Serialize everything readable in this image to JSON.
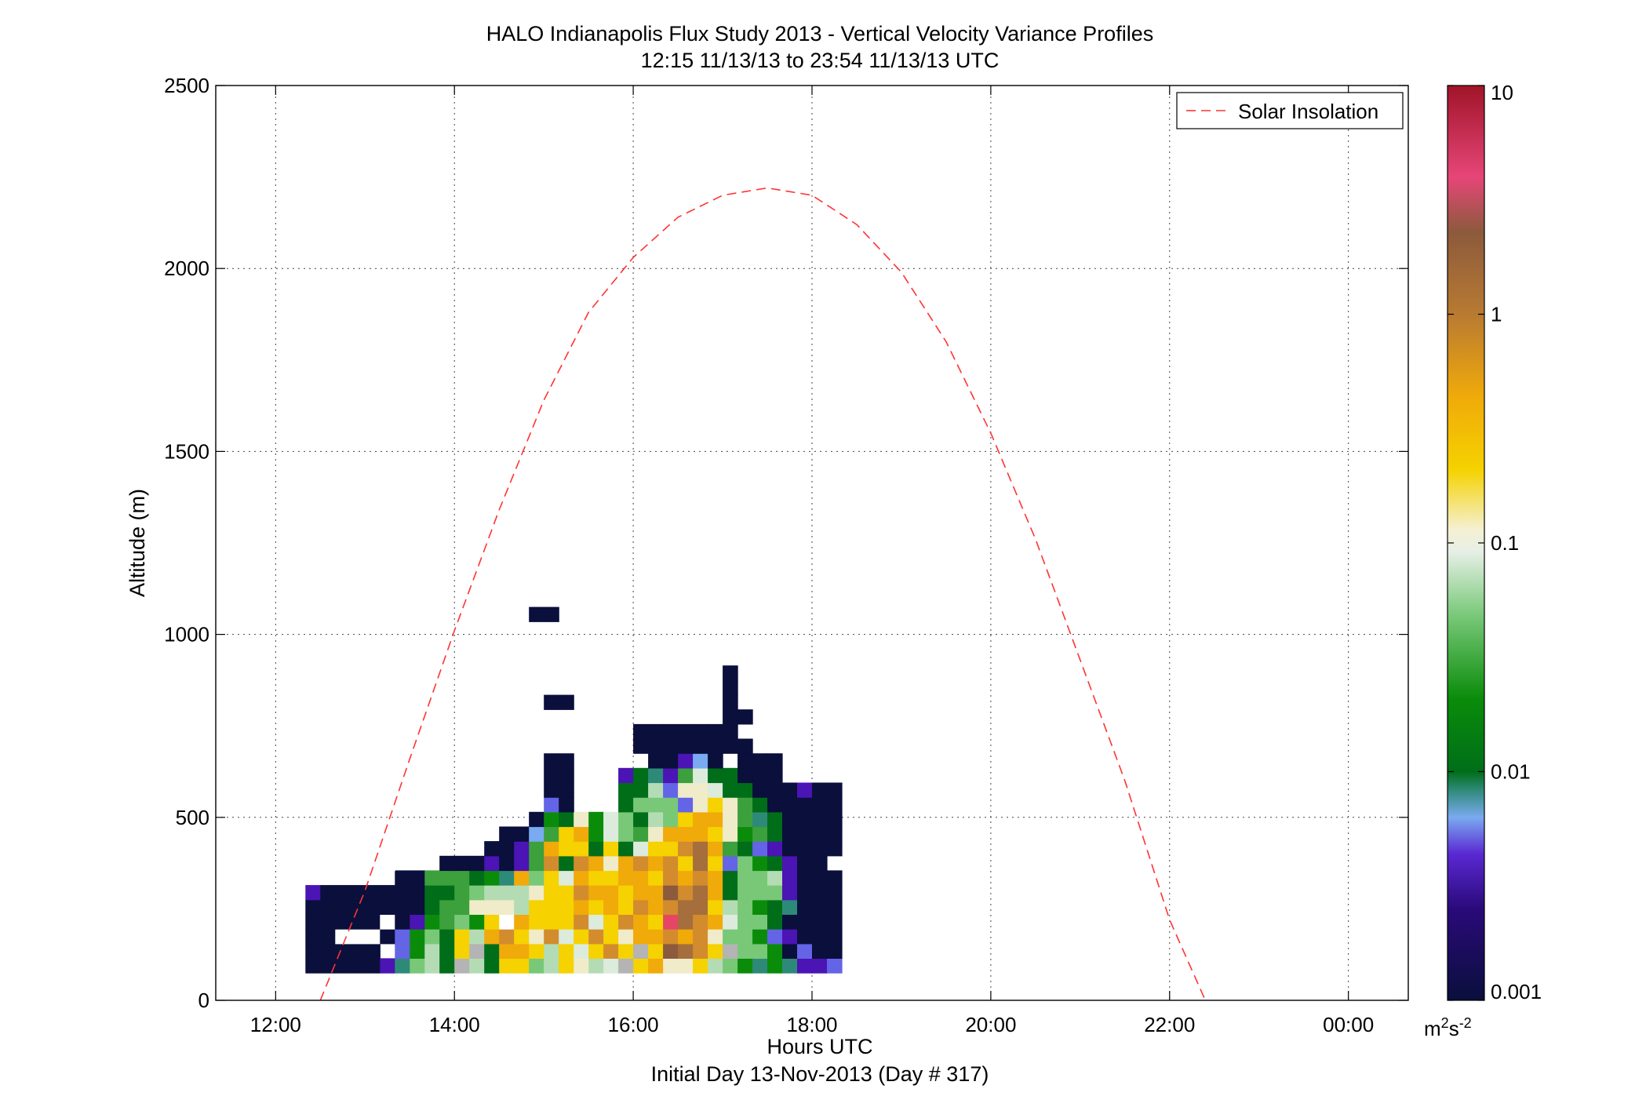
{
  "chart_data": {
    "type": "heatmap",
    "title": "HALO Indianapolis Flux Study 2013 - Vertical Velocity Variance Profiles",
    "subtitle": "12:15 11/13/13 to 23:54 11/13/13  UTC",
    "xlabel": "Hours UTC",
    "xlabel2": "Initial Day 13-Nov-2013 (Day # 317)",
    "ylabel": "Altitude (m)",
    "xlim": [
      11.33,
      24.67
    ],
    "ylim": [
      0,
      2500
    ],
    "xticks": [
      12,
      14,
      16,
      18,
      20,
      22,
      24
    ],
    "xtick_labels": [
      "12:00",
      "14:00",
      "16:00",
      "18:00",
      "20:00",
      "22:00",
      "00:00"
    ],
    "yticks": [
      0,
      500,
      1000,
      1500,
      2000,
      2500
    ],
    "ytick_labels": [
      "0",
      "500",
      "1000",
      "1500",
      "2000",
      "2500"
    ],
    "grid": true,
    "legend": {
      "location": "top-right",
      "entries": [
        {
          "name": "Solar Insolation",
          "style": "dashed",
          "color": "#ff3333"
        }
      ]
    },
    "colorbar": {
      "scale": "log",
      "range": [
        0.001,
        10
      ],
      "ticks": [
        0.001,
        0.01,
        0.1,
        1,
        10
      ],
      "tick_labels": [
        "0.001",
        "0.01",
        "0.1",
        "1",
        "10"
      ],
      "units_base": "m",
      "units_sup1": "2",
      "units_s": "s",
      "units_sup2": "-2"
    },
    "solar_insolation": {
      "times": [
        12.5,
        13.0,
        13.5,
        14.0,
        14.5,
        15.0,
        15.5,
        16.0,
        16.5,
        17.0,
        17.5,
        18.0,
        18.5,
        19.0,
        19.5,
        20.0,
        20.5,
        21.0,
        21.5,
        22.0,
        22.4
      ],
      "altitudes": [
        0,
        300,
        660,
        1010,
        1340,
        1640,
        1880,
        2030,
        2140,
        2200,
        2220,
        2200,
        2120,
        1990,
        1800,
        1550,
        1260,
        930,
        600,
        220,
        0
      ]
    },
    "grid_cells": {
      "time_start": 12.0,
      "time_step": 0.16667,
      "alt_start": 75,
      "alt_step": 40,
      "palette": {
        "N": "#0a0f3c",
        "P": "#4b14b4",
        "B": "#6464e6",
        "L": "#7aaaf0",
        "T": "#2e8a78",
        "D": "#006e19",
        "G": "#0a8c0a",
        "M": "#3ca03c",
        "m": "#78c878",
        "l": "#b4dcb4",
        "w": "#dcebdc",
        "c": "#f0ebc8",
        "y": "#f5d200",
        "o": "#f0aa0a",
        "a": "#d28c2d",
        "b": "#a56e3c",
        "r": "#8c5a3c",
        "k": "#e64664",
        "g": "#b4b4b4",
        "W": "#ffffff"
      },
      "rows": [
        "..NNNNNPTmlDglDyymlyclwgyoccylmGTGTPPB",
        "..NNNNN.BGlDygDooylywyaygyrbaygmmGNBNN",
        "..NNWWWNBGmDyloaycawyaycooaoacmmGBPNNN",
        "..NNNNNWNPGMmGyWoyyyawyaoykbaowmmDNNNN",
        "..NNNNNNNNDMMccclyyyoyoyaoabbylmGDTNNN",
        "..PNNNNNNNDDMmlllcyyaooyooraboDmmmPNNN",
        "........NNMMMDGTomywoyyooyaoaoDmmlPNNN",
        ".......W...NNNPNPMaDaocoaoaybyBmGDPNN.",
        "..............NNPMoyyDyDwyyaboMDBPNNNN",
        "...............NNLMyoGwmMcoooycGMDNNNN",
        ".................NGDcGwmDlmyoocMTDNNNN",
        "..................BN...DmmmBcycMDNNNNN",
        "..................NN...DDlBccwDDNNNPNN",
        "..................NN...PDTPMwDDNNN....",
        "..................NN.....NNPLN.NNN....",
        "........................NNNNNNNN......",
        "........................NNNNNNN.......",
        "..............................NN......",
        "..................NN..........N.......",
        "..............................N.......",
        "..............................N.......",
        "......................................",
        "......................................",
        "......................................",
        ".................NN..................."
      ]
    }
  }
}
